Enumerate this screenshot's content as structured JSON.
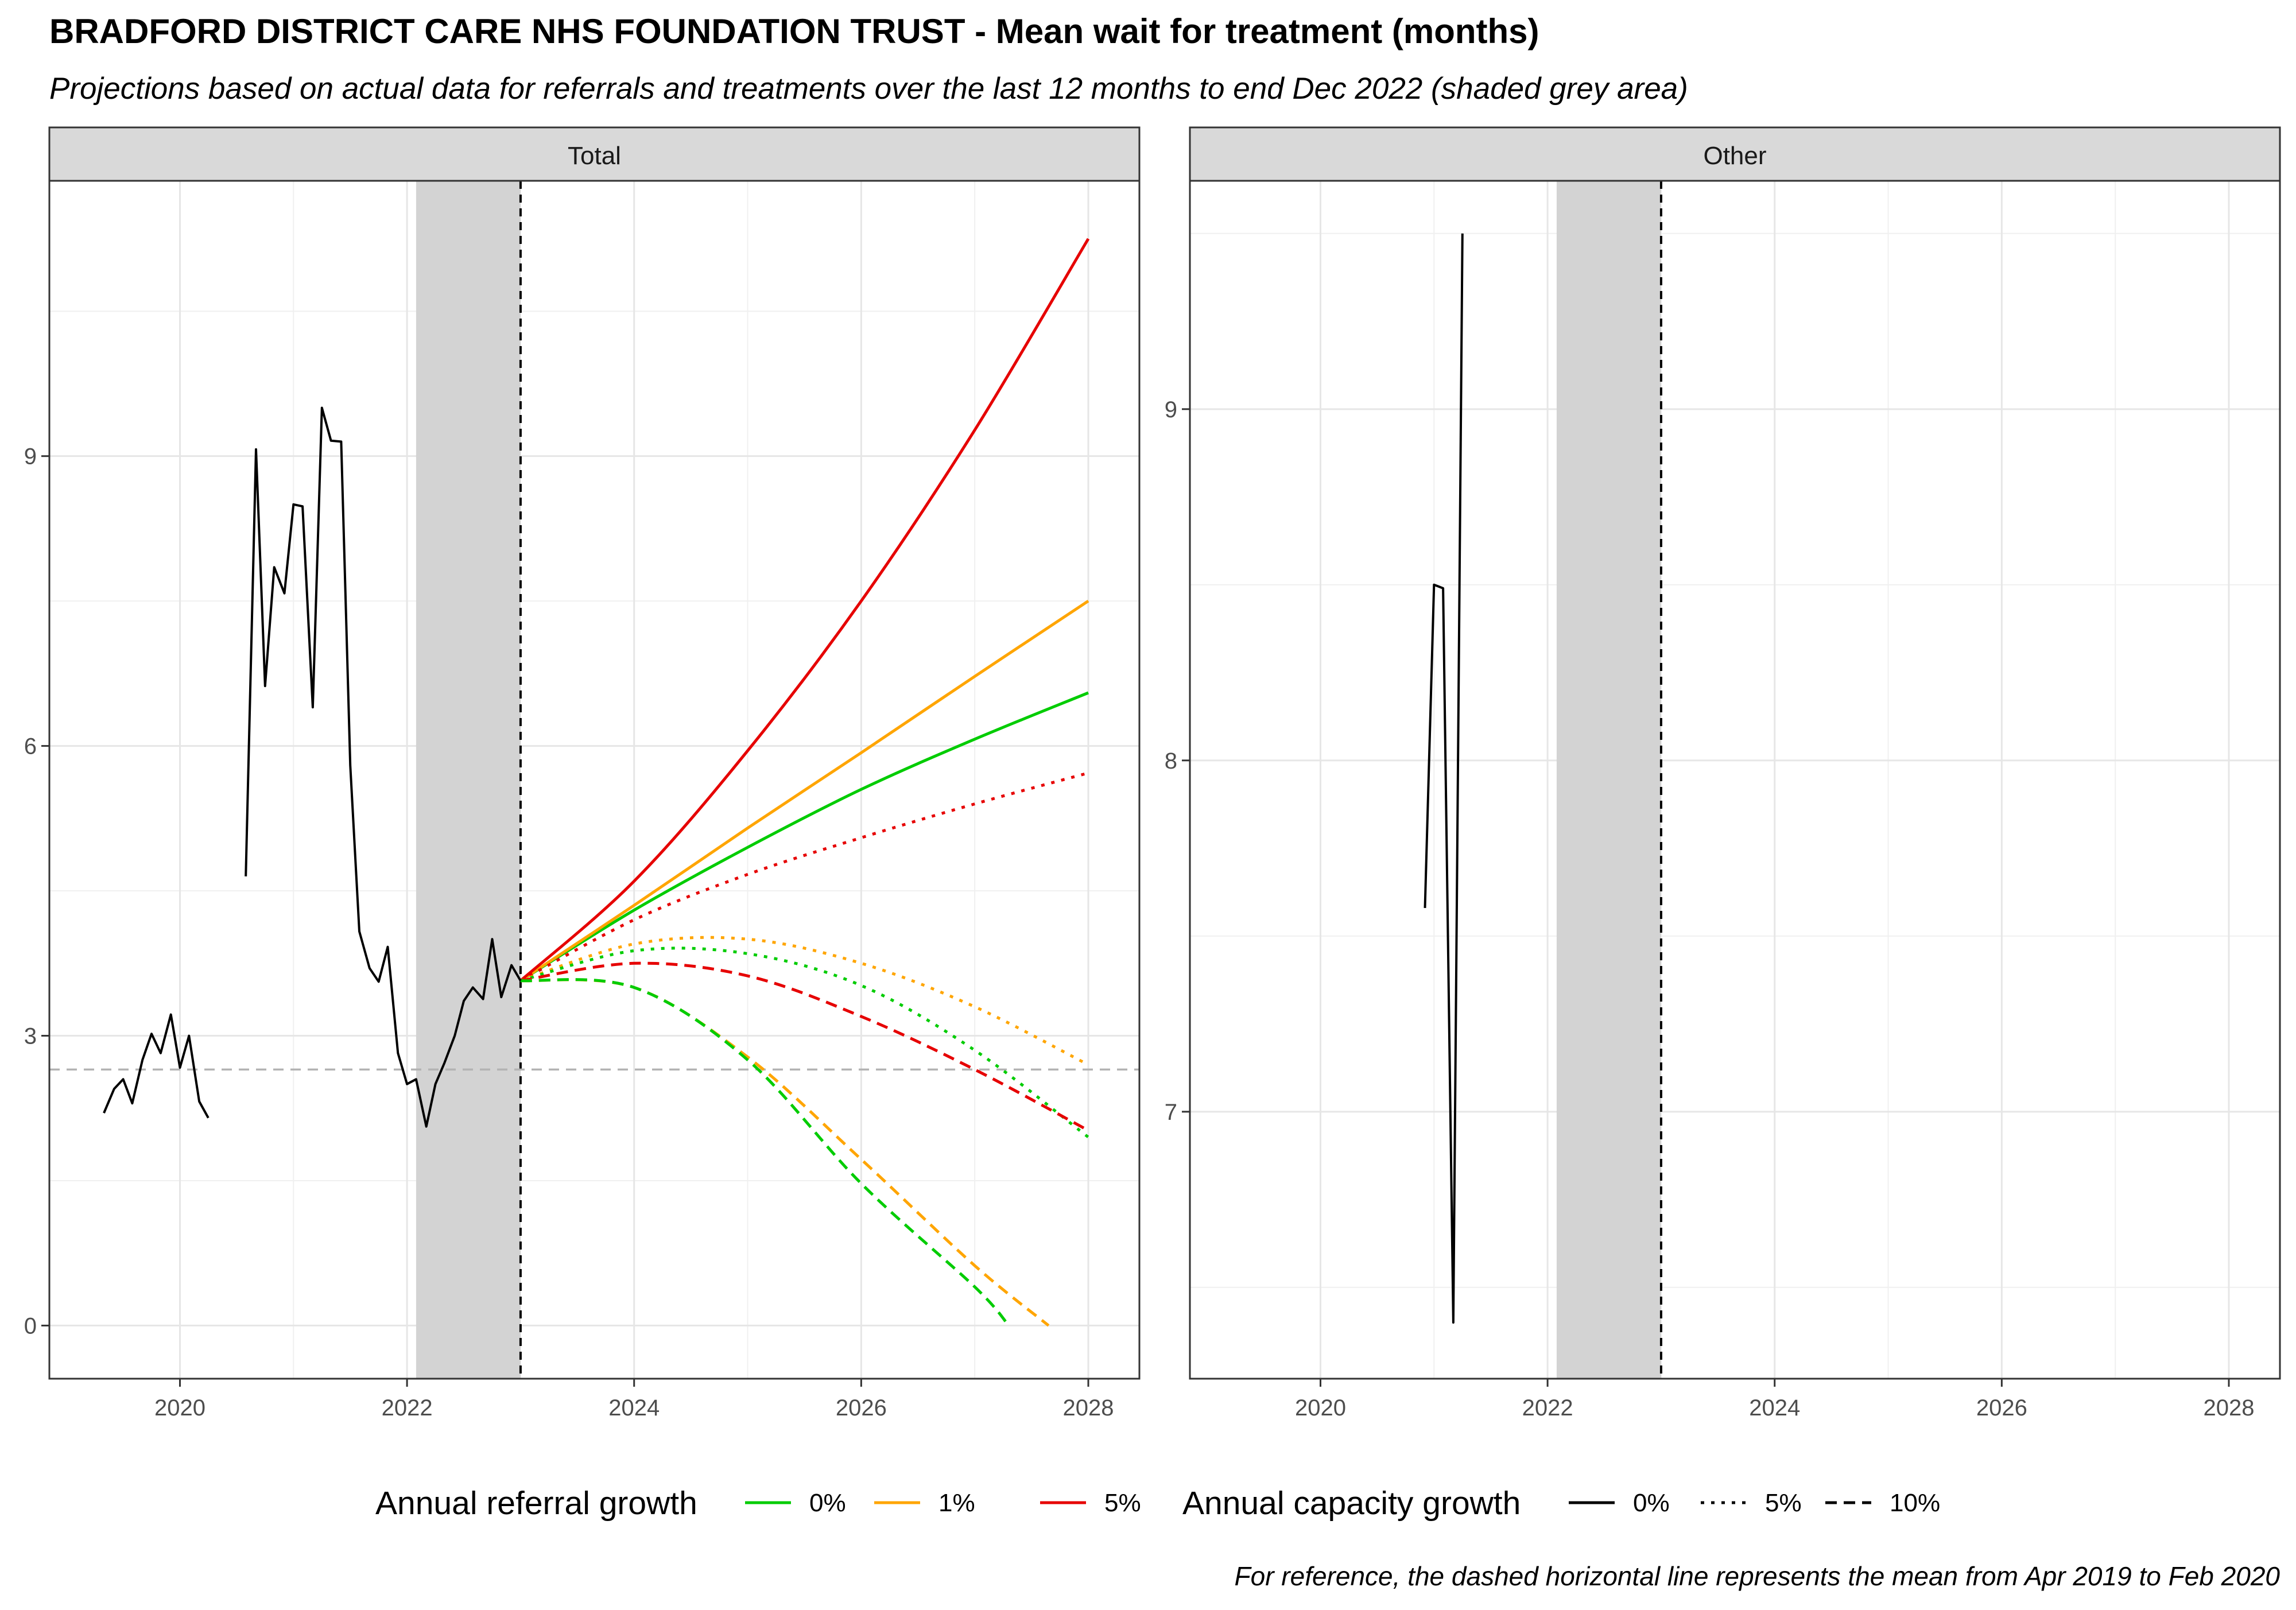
{
  "title": "BRADFORD DISTRICT CARE NHS FOUNDATION TRUST - Mean wait for treatment (months)",
  "subtitle": "Projections based on actual data for referrals and treatments over the last 12 months to end Dec 2022 (shaded grey area)",
  "caption": "For reference, the dashed horizontal line represents the mean from Apr 2019 to Feb 2020",
  "legend": {
    "referral_title": "Annual referral growth",
    "referral_items": [
      {
        "label": "0%",
        "color": "#00cc00"
      },
      {
        "label": "1%",
        "color": "#ffa500"
      },
      {
        "label": "5%",
        "color": "#e60000"
      }
    ],
    "capacity_title": "Annual capacity growth",
    "capacity_items": [
      {
        "label": "0%",
        "dash": "solid"
      },
      {
        "label": "5%",
        "dash": "dotted"
      },
      {
        "label": "10%",
        "dash": "dashed"
      }
    ]
  },
  "chart_data": [
    {
      "type": "line",
      "facet": "Total",
      "x_ticks": [
        "2020",
        "2022",
        "2024",
        "2026",
        "2028"
      ],
      "y_ticks": [
        "0",
        "3",
        "6",
        "9"
      ],
      "xlim": [
        2018.85,
        2028.45
      ],
      "ylim": [
        -0.55,
        11.85
      ],
      "shaded_period": [
        2022.08,
        2023.0
      ],
      "reference_line": 2.65,
      "actual": [
        [
          [
            2019.33,
            2.2
          ],
          [
            2019.42,
            2.45
          ],
          [
            2019.5,
            2.55
          ],
          [
            2019.58,
            2.3
          ],
          [
            2019.67,
            2.75
          ],
          [
            2019.75,
            3.02
          ],
          [
            2019.83,
            2.82
          ],
          [
            2019.92,
            3.22
          ],
          [
            2020.0,
            2.67
          ],
          [
            2020.08,
            3.0
          ],
          [
            2020.17,
            2.32
          ],
          [
            2020.25,
            2.15
          ]
        ],
        [
          [
            2020.58,
            4.65
          ],
          [
            2020.67,
            9.07
          ],
          [
            2020.75,
            6.62
          ],
          [
            2020.83,
            7.85
          ],
          [
            2020.92,
            7.58
          ],
          [
            2021.0,
            8.5
          ],
          [
            2021.08,
            8.48
          ],
          [
            2021.17,
            6.4
          ],
          [
            2021.25,
            9.5
          ],
          [
            2021.33,
            9.16
          ],
          [
            2021.42,
            9.15
          ],
          [
            2021.5,
            5.8
          ],
          [
            2021.58,
            4.08
          ],
          [
            2021.67,
            3.7
          ],
          [
            2021.75,
            3.56
          ],
          [
            2021.83,
            3.92
          ],
          [
            2021.92,
            2.82
          ],
          [
            2022.0,
            2.5
          ],
          [
            2022.08,
            2.55
          ],
          [
            2022.17,
            2.06
          ],
          [
            2022.25,
            2.5
          ],
          [
            2022.33,
            2.72
          ],
          [
            2022.42,
            3.0
          ],
          [
            2022.5,
            3.36
          ],
          [
            2022.58,
            3.5
          ],
          [
            2022.67,
            3.38
          ],
          [
            2022.75,
            4.0
          ],
          [
            2022.83,
            3.4
          ],
          [
            2022.92,
            3.73
          ],
          [
            2023.0,
            3.57
          ]
        ]
      ],
      "projections": [
        {
          "referral": "0%",
          "capacity": "0%",
          "x": [
            2023,
            2024,
            2025,
            2026,
            2027,
            2028
          ],
          "y": [
            3.57,
            4.3,
            4.95,
            5.55,
            6.07,
            6.55
          ]
        },
        {
          "referral": "1%",
          "capacity": "0%",
          "x": [
            2023,
            2024,
            2025,
            2026,
            2027,
            2028
          ],
          "y": [
            3.57,
            4.35,
            5.15,
            5.93,
            6.72,
            7.5
          ]
        },
        {
          "referral": "5%",
          "capacity": "0%",
          "x": [
            2023,
            2024,
            2025,
            2026,
            2027,
            2028
          ],
          "y": [
            3.57,
            4.6,
            5.95,
            7.5,
            9.27,
            11.25
          ]
        },
        {
          "referral": "5%",
          "capacity": "5%",
          "x": [
            2023,
            2024,
            2025,
            2026,
            2027,
            2028
          ],
          "y": [
            3.57,
            4.2,
            4.67,
            5.05,
            5.4,
            5.72
          ]
        },
        {
          "referral": "1%",
          "capacity": "5%",
          "x": [
            2023,
            2024,
            2025,
            2026,
            2027,
            2028
          ],
          "y": [
            3.57,
            3.95,
            4.0,
            3.75,
            3.3,
            2.7
          ]
        },
        {
          "referral": "0%",
          "capacity": "5%",
          "x": [
            2023,
            2024,
            2025,
            2026,
            2027,
            2028
          ],
          "y": [
            3.57,
            3.88,
            3.85,
            3.52,
            2.85,
            1.95
          ]
        },
        {
          "referral": "5%",
          "capacity": "10%",
          "x": [
            2023,
            2024,
            2025,
            2026,
            2027,
            2028
          ],
          "y": [
            3.57,
            3.75,
            3.62,
            3.2,
            2.65,
            2.02
          ]
        },
        {
          "referral": "1%",
          "capacity": "10%",
          "x": [
            2023,
            2024,
            2025,
            2026,
            2027,
            2027.65
          ],
          "y": [
            3.57,
            3.5,
            2.78,
            1.72,
            0.62,
            0.0
          ]
        },
        {
          "referral": "0%",
          "capacity": "10%",
          "x": [
            2023,
            2024,
            2025,
            2026,
            2027,
            2027.3
          ],
          "y": [
            3.57,
            3.5,
            2.75,
            1.47,
            0.4,
            0.0
          ]
        }
      ]
    },
    {
      "type": "line",
      "facet": "Other",
      "x_ticks": [
        "2020",
        "2022",
        "2024",
        "2026",
        "2028"
      ],
      "y_ticks": [
        "7",
        "8",
        "9"
      ],
      "xlim": [
        2018.85,
        2028.45
      ],
      "ylim": [
        6.24,
        9.65
      ],
      "shaded_period": [
        2022.08,
        2023.0
      ],
      "actual": [
        [
          [
            2020.92,
            7.58
          ],
          [
            2021.0,
            8.5
          ],
          [
            2021.08,
            8.49
          ],
          [
            2021.17,
            6.4
          ],
          [
            2021.25,
            9.5
          ]
        ]
      ]
    }
  ]
}
